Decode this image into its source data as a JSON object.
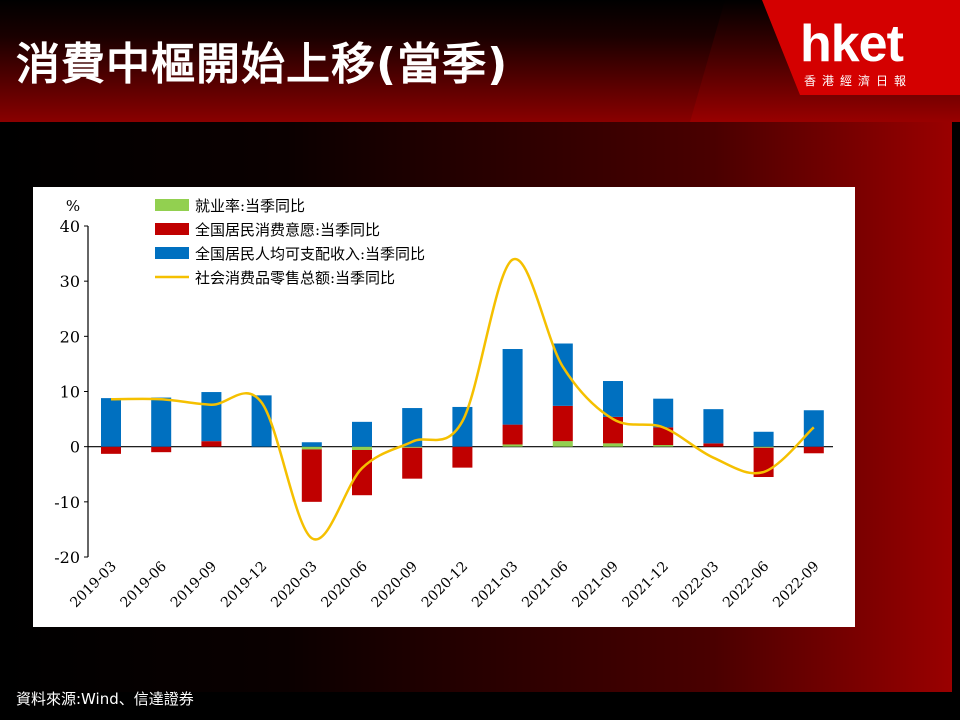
{
  "header": {
    "title": "消費中樞開始上移(當季)"
  },
  "logo": {
    "main": "hket",
    "sub": "香港經濟日報"
  },
  "source": "資料來源:Wind、信達證券",
  "chart_data": {
    "type": "bar",
    "y_unit": "%",
    "ylim": [
      -20,
      40
    ],
    "yticks": [
      "40",
      "30",
      "20",
      "10",
      "0",
      "-10",
      "-20"
    ],
    "categories": [
      "2019-03",
      "2019-06",
      "2019-09",
      "2019-12",
      "2020-03",
      "2020-06",
      "2020-09",
      "2020-12",
      "2021-03",
      "2021-06",
      "2021-09",
      "2021-12",
      "2022-03",
      "2022-06",
      "2022-09"
    ],
    "legend_position": "top-left",
    "series": [
      {
        "name": "就业率:当季同比",
        "kind": "bar",
        "color": "#92d050",
        "values": [
          0,
          0,
          0,
          0,
          -0.5,
          -0.6,
          -0.2,
          0,
          0.4,
          1.0,
          0.6,
          0.3,
          0,
          -0.2,
          0
        ]
      },
      {
        "name": "全国居民消费意愿:当季同比",
        "kind": "bar",
        "color": "#c00000",
        "values": [
          -1.3,
          -1.0,
          1.0,
          0,
          -9.5,
          -8.2,
          -5.6,
          -3.8,
          3.6,
          6.4,
          4.8,
          3.2,
          0.6,
          -5.3,
          -1.2
        ]
      },
      {
        "name": "全国居民人均可支配收入:当季同比",
        "kind": "bar",
        "color": "#0070c0",
        "values": [
          8.8,
          8.9,
          8.9,
          9.3,
          0.8,
          4.5,
          7.0,
          7.2,
          13.7,
          11.3,
          6.5,
          5.2,
          6.2,
          2.7,
          6.6
        ]
      },
      {
        "name": "社会消费品零售总额:当季同比",
        "kind": "line",
        "color": "#f5c000",
        "values": [
          8.6,
          8.6,
          7.6,
          8.0,
          -16.6,
          -3.9,
          0.9,
          4.6,
          33.9,
          14.5,
          5.0,
          3.5,
          -2.0,
          -4.6,
          3.5
        ]
      }
    ]
  }
}
